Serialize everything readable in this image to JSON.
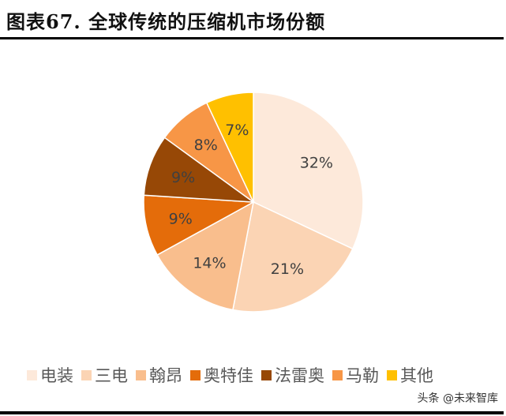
{
  "title": "图表67.  全球传统的压缩机市场份额",
  "watermark": "头条 @未来智库",
  "chart_data": {
    "type": "pie",
    "title": "全球传统的压缩机市场份额",
    "categories": [
      "电装",
      "三电",
      "翰昂",
      "奥特佳",
      "法雷奥",
      "马勒",
      "其他"
    ],
    "values": [
      32,
      21,
      14,
      9,
      9,
      8,
      7
    ],
    "labels": [
      "32%",
      "21%",
      "14%",
      "9%",
      "9%",
      "8%",
      "7%"
    ],
    "colors": [
      "#FDE9DA",
      "#FBD4B4",
      "#F9BE8D",
      "#E46C0A",
      "#974806",
      "#F79646",
      "#FFC000"
    ],
    "legend_position": "bottom",
    "start_angle_deg": 0,
    "direction": "clockwise"
  },
  "legend": {
    "items": [
      {
        "label": "电装",
        "color": "#FDE9DA"
      },
      {
        "label": "三电",
        "color": "#FBD4B4"
      },
      {
        "label": "翰昂",
        "color": "#F9BE8D"
      },
      {
        "label": "奥特佳",
        "color": "#E46C0A"
      },
      {
        "label": "法雷奥",
        "color": "#974806"
      },
      {
        "label": "马勒",
        "color": "#F79646"
      },
      {
        "label": "其他",
        "color": "#FFC000"
      }
    ]
  }
}
